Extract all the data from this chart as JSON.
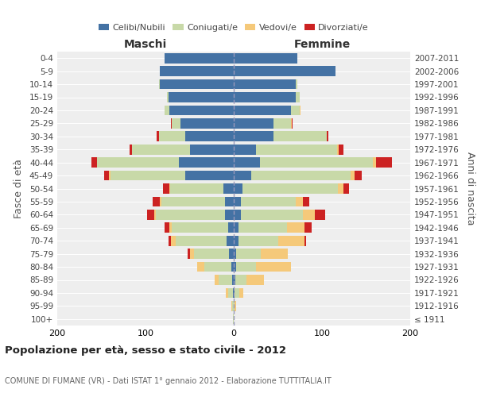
{
  "age_groups": [
    "100+",
    "95-99",
    "90-94",
    "85-89",
    "80-84",
    "75-79",
    "70-74",
    "65-69",
    "60-64",
    "55-59",
    "50-54",
    "45-49",
    "40-44",
    "35-39",
    "30-34",
    "25-29",
    "20-24",
    "15-19",
    "10-14",
    "5-9",
    "0-4"
  ],
  "birth_years": [
    "≤ 1911",
    "1912-1916",
    "1917-1921",
    "1922-1926",
    "1927-1931",
    "1932-1936",
    "1937-1941",
    "1942-1946",
    "1947-1951",
    "1952-1956",
    "1957-1961",
    "1962-1966",
    "1967-1971",
    "1972-1976",
    "1977-1981",
    "1982-1986",
    "1987-1991",
    "1992-1996",
    "1997-2001",
    "2002-2006",
    "2007-2011"
  ],
  "maschi_celibi": [
    0,
    0,
    1,
    2,
    3,
    5,
    8,
    6,
    10,
    10,
    12,
    55,
    62,
    50,
    55,
    60,
    73,
    74,
    84,
    84,
    78
  ],
  "maschi_coniugati": [
    1,
    2,
    5,
    15,
    30,
    40,
    58,
    64,
    78,
    72,
    60,
    85,
    93,
    65,
    30,
    10,
    5,
    2,
    1,
    0,
    0
  ],
  "maschi_vedovi": [
    0,
    1,
    3,
    5,
    8,
    5,
    5,
    3,
    2,
    2,
    1,
    1,
    0,
    0,
    0,
    0,
    0,
    0,
    0,
    0,
    0
  ],
  "maschi_divorziati": [
    0,
    0,
    0,
    0,
    0,
    2,
    3,
    5,
    8,
    8,
    7,
    6,
    6,
    3,
    2,
    1,
    0,
    0,
    0,
    0,
    0
  ],
  "femmine_nubili": [
    0,
    0,
    1,
    2,
    3,
    3,
    5,
    5,
    8,
    8,
    10,
    20,
    30,
    25,
    45,
    45,
    65,
    70,
    70,
    115,
    72
  ],
  "femmine_coniugate": [
    0,
    1,
    5,
    12,
    22,
    28,
    45,
    55,
    70,
    62,
    108,
    112,
    128,
    92,
    60,
    20,
    10,
    5,
    2,
    0,
    0
  ],
  "femmine_vedove": [
    0,
    2,
    5,
    20,
    40,
    30,
    30,
    20,
    14,
    8,
    6,
    5,
    3,
    2,
    0,
    1,
    1,
    0,
    0,
    0,
    0
  ],
  "femmine_divorziate": [
    0,
    0,
    0,
    0,
    0,
    0,
    2,
    8,
    12,
    8,
    7,
    8,
    18,
    5,
    2,
    1,
    0,
    0,
    0,
    0,
    0
  ],
  "color_celibi": "#4472a4",
  "color_coniugati": "#c8d9a8",
  "color_vedovi": "#f5c97a",
  "color_divorziati": "#cc2222",
  "xlim": 200,
  "title": "Popolazione per età, sesso e stato civile - 2012",
  "subtitle": "COMUNE DI FUMANE (VR) - Dati ISTAT 1° gennaio 2012 - Elaborazione TUTTITALIA.IT",
  "ylabel_left": "Fasce di età",
  "ylabel_right": "Anni di nascita",
  "label_maschi": "Maschi",
  "label_femmine": "Femmine",
  "legend_labels": [
    "Celibi/Nubili",
    "Coniugati/e",
    "Vedovi/e",
    "Divorziati/e"
  ],
  "bg_color": "#eeeeee"
}
